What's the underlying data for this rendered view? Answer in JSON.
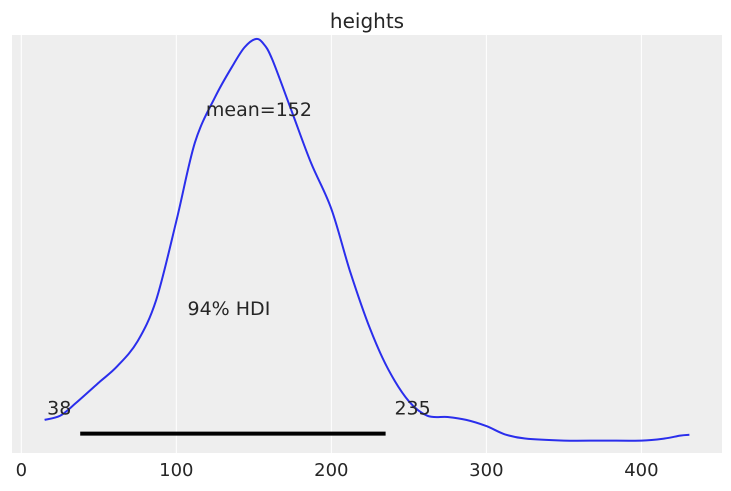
{
  "chart_data": {
    "type": "line",
    "title": "heights",
    "xlabel": "",
    "ylabel": "",
    "xlim": [
      -6,
      452
    ],
    "ylim": [
      -0.0003,
      0.0098
    ],
    "xticks": [
      0,
      100,
      200,
      300,
      400
    ],
    "grid": "vertical",
    "line_color": "#2a2eec",
    "hdi_color": "#000000",
    "background_color": "#eeeeee",
    "series": [
      {
        "x": [
          15,
          25,
          35,
          50,
          62,
          75,
          87,
          100,
          112,
          125,
          137,
          144,
          151,
          156,
          162,
          175,
          187,
          200,
          212,
          225,
          237,
          250,
          262,
          275,
          287,
          300,
          312,
          325,
          350,
          375,
          400,
          415,
          425,
          431
        ],
        "y": [
          0.0005,
          0.0006,
          0.0009,
          0.0014,
          0.0018,
          0.0024,
          0.0034,
          0.0053,
          0.0072,
          0.0083,
          0.0091,
          0.0095,
          0.0097,
          0.0096,
          0.0092,
          0.0079,
          0.0067,
          0.0056,
          0.0041,
          0.0027,
          0.0017,
          0.00095,
          0.0006,
          0.00057,
          0.0005,
          0.00035,
          0.00015,
          5e-05,
          0.0,
          0.0,
          0.0,
          5e-05,
          0.00012,
          0.00014
        ]
      }
    ],
    "mean": 152,
    "mean_label": "mean=152",
    "hdi": {
      "label": "94% HDI",
      "low": 38,
      "high": 235,
      "low_label": "38",
      "high_label": "235"
    }
  }
}
